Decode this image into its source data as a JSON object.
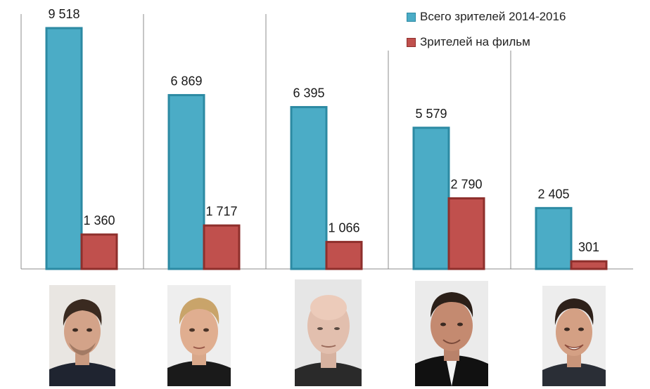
{
  "chart_data": {
    "type": "bar",
    "categories": [
      "",
      "",
      "",
      "",
      ""
    ],
    "series": [
      {
        "name": "Всего зрителей 2014-2016",
        "values": [
          9518,
          6869,
          6395,
          5579,
          2405
        ],
        "labels": [
          "9 518",
          "6 869",
          "6 395",
          "5 579",
          "2 405"
        ],
        "color": "#4bacc6"
      },
      {
        "name": "Зрителей на фильм",
        "values": [
          1360,
          1717,
          1066,
          2790,
          301
        ],
        "labels": [
          "1 360",
          "1 717",
          "1 066",
          "2 790",
          "301"
        ],
        "color": "#c0504d"
      }
    ],
    "ylim": [
      0,
      10000
    ],
    "grid": false,
    "legend_position": "top-right",
    "title": "",
    "xlabel": "",
    "ylabel": ""
  },
  "colors": {
    "series1_fill": "#4bacc6",
    "series1_stroke": "#2c8aa3",
    "series2_fill": "#c0504d",
    "series2_stroke": "#8e2f2c"
  }
}
